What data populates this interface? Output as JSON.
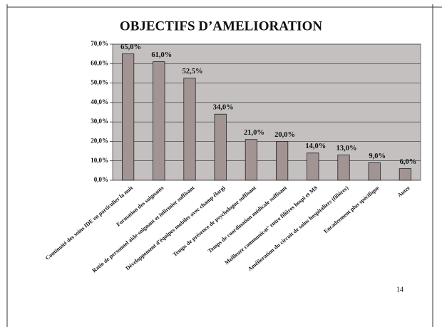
{
  "chart_data": {
    "type": "bar",
    "title": "OBJECTIFS D’AMELIORATION",
    "categories": [
      "Continuité des soins IDE en particulier la nuit",
      "Formation des soignants",
      "Ratio de personnel aide-soignant et infirmier suffisant",
      "Développement d'équipes mobiles avec champ élargi",
      "Temps de présence de psychologue suffisant",
      "Temps de coordination médicale suffisant",
      "Meilleure communicat° entre filières hospi et MS",
      "Amélioration du circuit de soins hospitaliers (filières)",
      "Encadrement plus spécifique",
      "Autre"
    ],
    "values": [
      65,
      61,
      52.5,
      34,
      21,
      20,
      14,
      13,
      9,
      6
    ],
    "value_labels": [
      "65,0%",
      "61,0%",
      "52,5%",
      "34,0%",
      "21,0%",
      "20,0%",
      "14,0%",
      "13,0%",
      "9,0%",
      "6,0%"
    ],
    "color": "#a39494",
    "ylim": [
      0,
      70
    ],
    "yticks": [
      {
        "value": 0,
        "label": "0,0%"
      },
      {
        "value": 10,
        "label": "10,0%"
      },
      {
        "value": 20,
        "label": "20,0%"
      },
      {
        "value": 30,
        "label": "30,0%"
      },
      {
        "value": 40,
        "label": "40,0%"
      },
      {
        "value": 50,
        "label": "50,0%"
      },
      {
        "value": 60,
        "label": "60,0%"
      },
      {
        "value": 70,
        "label": "70,0%"
      }
    ],
    "grid": true
  },
  "page_number": "14"
}
